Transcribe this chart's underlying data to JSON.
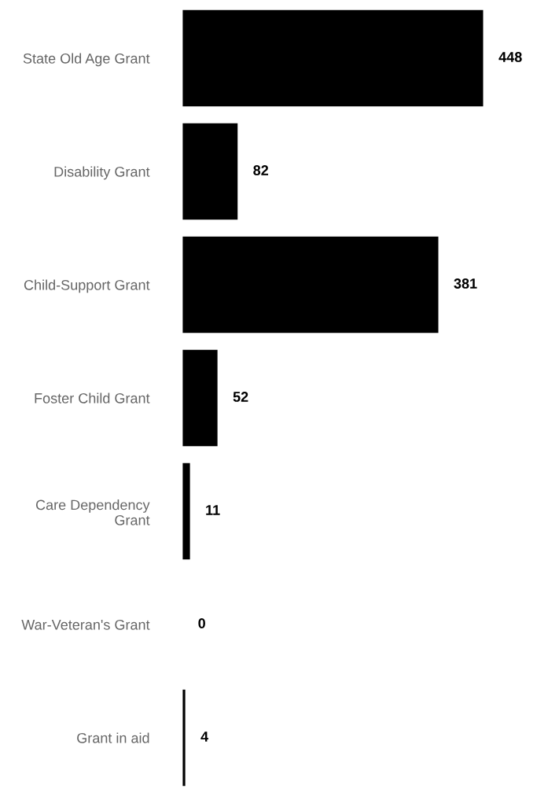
{
  "chart_data": {
    "type": "bar",
    "orientation": "horizontal",
    "categories": [
      "State Old Age Grant",
      "Disability Grant",
      "Child-Support Grant",
      "Foster Child Grant",
      "Care Dependency\nGrant",
      "War-Veteran's Grant",
      "Grant in aid"
    ],
    "values": [
      448,
      82,
      381,
      52,
      11,
      0,
      4
    ],
    "color": "#000000",
    "data_labels": true,
    "grid": false,
    "legend": false
  }
}
